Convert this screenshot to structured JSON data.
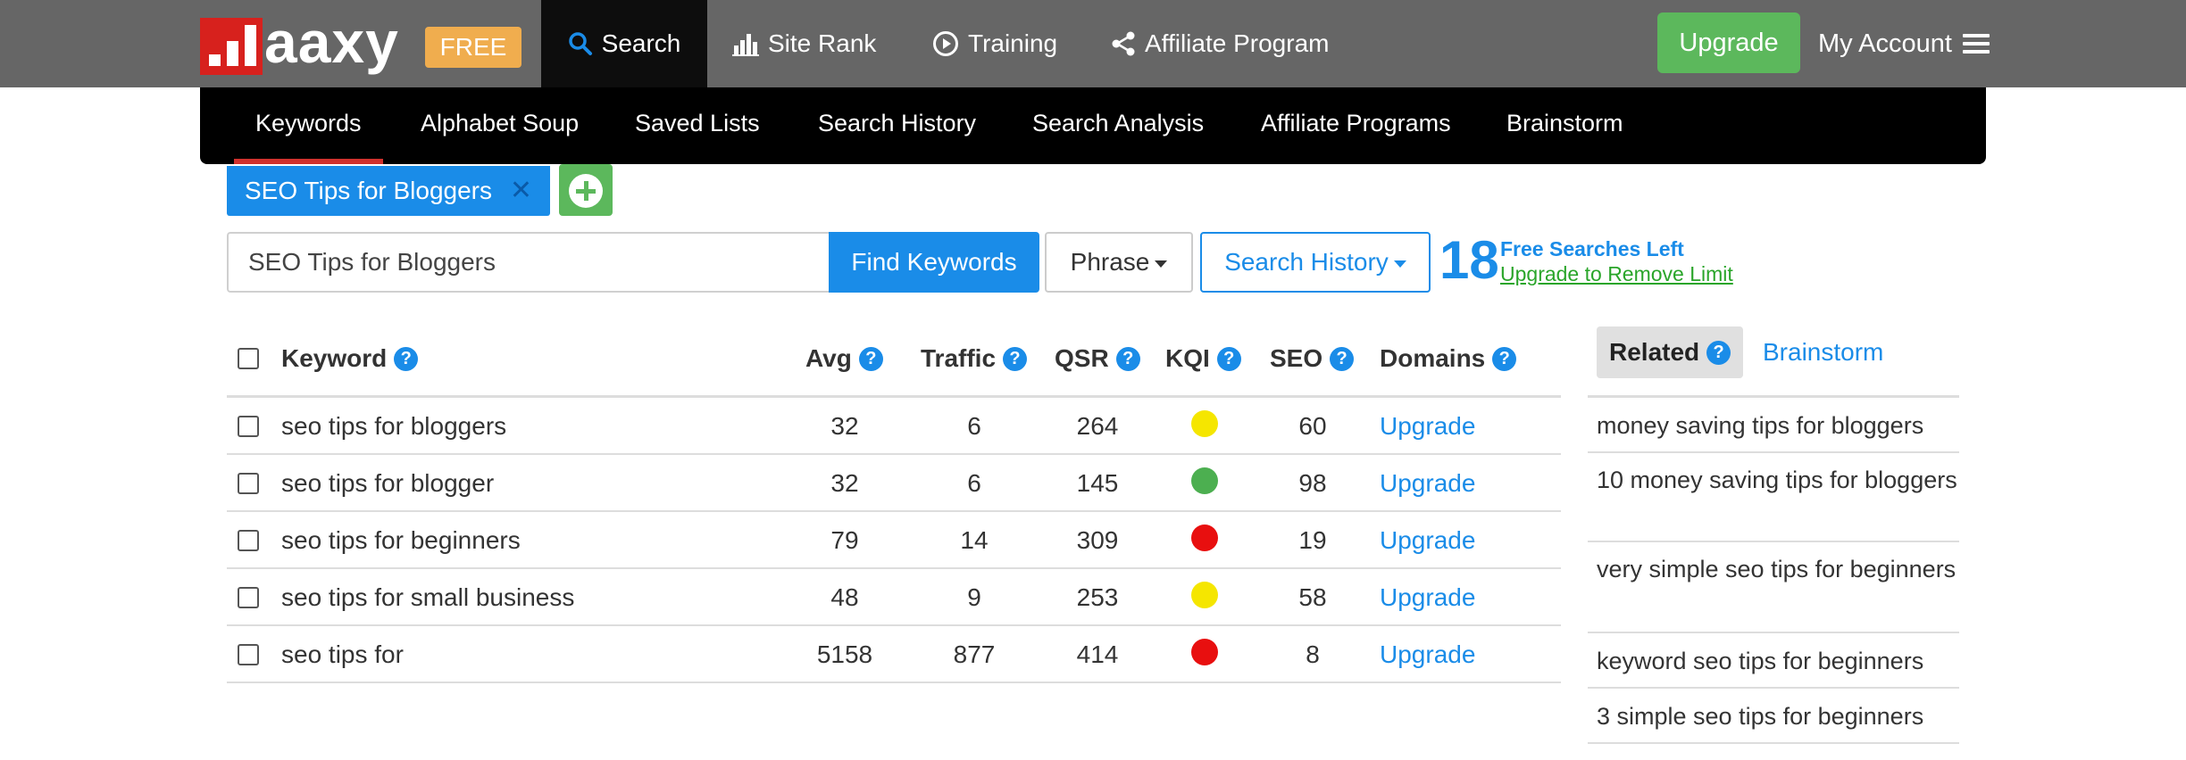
{
  "brand": {
    "name": "aaxy",
    "badge": "FREE"
  },
  "topnav": {
    "search": "Search",
    "site_rank": "Site Rank",
    "training": "Training",
    "affiliate_program": "Affiliate Program",
    "upgrade": "Upgrade",
    "my_account": "My Account"
  },
  "subnav": [
    "Keywords",
    "Alphabet Soup",
    "Saved Lists",
    "Search History",
    "Search Analysis",
    "Affiliate Programs",
    "Brainstorm"
  ],
  "tag": {
    "label": "SEO Tips for Bloggers",
    "close": "✕"
  },
  "search": {
    "value": "SEO Tips for Bloggers",
    "find_button": "Find Keywords",
    "match_type": "Phrase",
    "history_button": "Search History"
  },
  "free_searches": {
    "count": "18",
    "label": "Free Searches Left",
    "link": "Upgrade to Remove Limit"
  },
  "table": {
    "headers": {
      "keyword": "Keyword",
      "avg": "Avg",
      "traffic": "Traffic",
      "qsr": "QSR",
      "kqi": "KQI",
      "seo": "SEO",
      "domains": "Domains"
    },
    "rows": [
      {
        "keyword": "seo tips for bloggers",
        "avg": "32",
        "traffic": "6",
        "qsr": "264",
        "kqi_color": "#f5e600",
        "seo": "60",
        "domains": "Upgrade"
      },
      {
        "keyword": "seo tips for blogger",
        "avg": "32",
        "traffic": "6",
        "qsr": "145",
        "kqi_color": "#4caf50",
        "seo": "98",
        "domains": "Upgrade"
      },
      {
        "keyword": "seo tips for beginners",
        "avg": "79",
        "traffic": "14",
        "qsr": "309",
        "kqi_color": "#e80f0f",
        "seo": "19",
        "domains": "Upgrade"
      },
      {
        "keyword": "seo tips for small business",
        "avg": "48",
        "traffic": "9",
        "qsr": "253",
        "kqi_color": "#f5e600",
        "seo": "58",
        "domains": "Upgrade"
      },
      {
        "keyword": "seo tips for",
        "avg": "5158",
        "traffic": "877",
        "qsr": "414",
        "kqi_color": "#e80f0f",
        "seo": "8",
        "domains": "Upgrade"
      }
    ]
  },
  "related": {
    "tab_related": "Related",
    "tab_brainstorm": "Brainstorm",
    "items": [
      "money saving tips for bloggers",
      "10 money saving tips for bloggers",
      "very simple seo tips for beginners",
      "keyword seo tips for beginners",
      "3 simple seo tips for beginners"
    ]
  },
  "colors": {
    "accent": "#1a8ce8",
    "topbar": "#666666",
    "upgrade": "#5cb85c",
    "free_badge": "#f0ad4e",
    "logo": "#d7211d"
  }
}
